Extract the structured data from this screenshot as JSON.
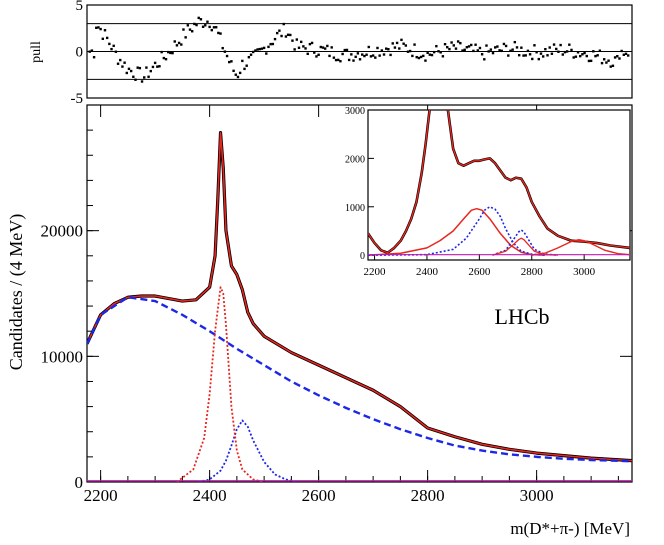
{
  "chart_data": [
    {
      "type": "scatter",
      "name": "pull-panel",
      "ylabel": "pull",
      "xlim": [
        2175,
        3175
      ],
      "ylim": [
        -5,
        5
      ],
      "yticks": [
        "5",
        "0",
        "-5"
      ],
      "reference_lines": [
        3,
        0,
        -3
      ],
      "series": [
        {
          "name": "pull",
          "x": [
            2190,
            2200,
            2210,
            2220,
            2230,
            2240,
            2250,
            2260,
            2270,
            2280,
            2300,
            2320,
            2340,
            2360,
            2380,
            2400,
            2410,
            2420,
            2430,
            2440,
            2450,
            2460,
            2480,
            2500,
            2520,
            2540,
            2560,
            2600,
            2650,
            2700,
            2750,
            2800,
            2850,
            2900,
            2950,
            3000,
            3050,
            3100,
            3150
          ],
          "values": [
            3.1,
            2.4,
            1.5,
            0.6,
            -0.5,
            -1.2,
            -1.9,
            -2.2,
            -2.5,
            -2.7,
            -1.5,
            -0.4,
            0.9,
            2.2,
            3.2,
            3.3,
            2.6,
            1.2,
            -0.2,
            -1.6,
            -2.6,
            -1.4,
            -0.8,
            0.3,
            1.5,
            2.4,
            0.5,
            0.2,
            -0.4,
            0.1,
            0.6,
            -0.3,
            0.4,
            -0.2,
            0.3,
            -0.1,
            0.2,
            -0.3,
            -1.1
          ]
        }
      ]
    },
    {
      "type": "line",
      "name": "main-panel",
      "xlabel": "m(D*+π-) [MeV]",
      "ylabel": "Candidates / (4 MeV)",
      "xlim": [
        2175,
        3175
      ],
      "ylim": [
        0,
        30000
      ],
      "xticks": [
        2200,
        2400,
        2600,
        2800,
        3000
      ],
      "yticks": [
        0,
        10000,
        20000
      ],
      "xtick_labels": [
        "2200",
        "2400",
        "2600",
        "2800",
        "3000"
      ],
      "ytick_labels": [
        "0",
        "10000",
        "20000"
      ],
      "series": [
        {
          "name": "data",
          "color": "#000000",
          "x": [
            2175,
            2200,
            2225,
            2250,
            2275,
            2300,
            2325,
            2350,
            2375,
            2400,
            2410,
            2415,
            2420,
            2425,
            2430,
            2440,
            2450,
            2460,
            2470,
            2480,
            2500,
            2550,
            2600,
            2650,
            2700,
            2750,
            2800,
            2850,
            2900,
            2950,
            3000,
            3050,
            3100,
            3175
          ],
          "values": [
            11000,
            13300,
            14200,
            14700,
            14800,
            14800,
            14600,
            14400,
            14500,
            15500,
            18000,
            22500,
            27800,
            25000,
            20000,
            17200,
            16500,
            15300,
            13500,
            12600,
            11600,
            10300,
            9300,
            8300,
            7300,
            6000,
            4300,
            3600,
            3000,
            2600,
            2300,
            2100,
            1900,
            1700
          ]
        },
        {
          "name": "total-fit",
          "color": "#e8261f",
          "x": [
            2175,
            2200,
            2225,
            2250,
            2275,
            2300,
            2325,
            2350,
            2375,
            2400,
            2410,
            2415,
            2420,
            2425,
            2430,
            2440,
            2450,
            2460,
            2470,
            2480,
            2500,
            2550,
            2600,
            2650,
            2700,
            2750,
            2800,
            2850,
            2900,
            2950,
            3000,
            3050,
            3100,
            3175
          ],
          "values": [
            11000,
            13300,
            14200,
            14700,
            14800,
            14800,
            14600,
            14400,
            14500,
            15500,
            18000,
            22500,
            27800,
            25000,
            20000,
            17200,
            16500,
            15300,
            13500,
            12600,
            11600,
            10300,
            9300,
            8300,
            7300,
            6000,
            4300,
            3600,
            3000,
            2600,
            2300,
            2100,
            1900,
            1700
          ]
        },
        {
          "name": "background",
          "color": "#1d27e8",
          "x": [
            2175,
            2200,
            2250,
            2300,
            2350,
            2400,
            2450,
            2500,
            2550,
            2600,
            2650,
            2700,
            2750,
            2800,
            2850,
            2900,
            2950,
            3000,
            3050,
            3100,
            3175
          ],
          "values": [
            11000,
            13300,
            14700,
            14400,
            13300,
            12000,
            10600,
            9300,
            8000,
            6900,
            5900,
            5000,
            4200,
            3500,
            2900,
            2500,
            2200,
            2000,
            1850,
            1750,
            1650
          ]
        },
        {
          "name": "D2(2460)-like",
          "color": "#1d27e8",
          "x": [
            2380,
            2400,
            2420,
            2430,
            2440,
            2450,
            2460,
            2470,
            2480,
            2500,
            2520,
            2540,
            2560
          ],
          "values": [
            0,
            200,
            900,
            1700,
            2900,
            4200,
            4900,
            4400,
            3300,
            1600,
            600,
            200,
            0
          ]
        },
        {
          "name": "D1(2420)-like",
          "color": "#e8261f",
          "x": [
            2340,
            2370,
            2390,
            2400,
            2410,
            2420,
            2425,
            2430,
            2440,
            2450,
            2460,
            2480,
            2500
          ],
          "values": [
            0,
            1000,
            3500,
            7000,
            12000,
            15500,
            15000,
            12500,
            6000,
            2500,
            1000,
            200,
            0
          ]
        }
      ]
    },
    {
      "type": "line",
      "name": "inset-panel",
      "xlim": [
        2175,
        3175
      ],
      "ylim": [
        -100,
        3000
      ],
      "xticks": [
        2200,
        2400,
        2600,
        2800,
        3000
      ],
      "yticks": [
        0,
        1000,
        2000,
        3000
      ],
      "xtick_labels": [
        "2200",
        "2400",
        "2600",
        "2800",
        "3000"
      ],
      "ytick_labels": [
        "0",
        "1000",
        "2000",
        "3000"
      ],
      "label": "LHCb",
      "series": [
        {
          "name": "data",
          "color": "#000000",
          "x": [
            2175,
            2200,
            2225,
            2250,
            2275,
            2300,
            2320,
            2340,
            2360,
            2380,
            2395,
            2410,
            2420
          ],
          "values": [
            450,
            250,
            100,
            50,
            150,
            300,
            500,
            750,
            1100,
            1700,
            2300,
            3000,
            3100
          ]
        },
        {
          "name": "data-right",
          "color": "#000000",
          "x": [
            2480,
            2500,
            2520,
            2540,
            2560,
            2580,
            2600,
            2620,
            2640,
            2660,
            2680,
            2700,
            2720,
            2740,
            2760,
            2780,
            2800,
            2830,
            2860,
            2900,
            2950,
            3000,
            3050,
            3100,
            3175
          ],
          "values": [
            3000,
            2200,
            1900,
            1850,
            1900,
            1950,
            1950,
            1980,
            2000,
            1900,
            1750,
            1600,
            1550,
            1600,
            1580,
            1400,
            1100,
            800,
            550,
            400,
            300,
            280,
            250,
            200,
            150
          ]
        },
        {
          "name": "fit",
          "color": "#e8261f",
          "x": [
            2175,
            2200,
            2225,
            2250,
            2275,
            2300,
            2320,
            2340,
            2360,
            2380,
            2395,
            2410,
            2420
          ],
          "values": [
            450,
            250,
            100,
            50,
            150,
            300,
            500,
            750,
            1100,
            1700,
            2300,
            3000,
            3100
          ]
        },
        {
          "name": "fit-right",
          "color": "#e8261f",
          "x": [
            2480,
            2500,
            2520,
            2540,
            2560,
            2580,
            2600,
            2620,
            2640,
            2660,
            2680,
            2700,
            2720,
            2740,
            2760,
            2780,
            2800,
            2830,
            2860,
            2900,
            2950,
            3000,
            3050,
            3100,
            3175
          ],
          "values": [
            3000,
            2200,
            1900,
            1850,
            1900,
            1950,
            1950,
            1980,
            2000,
            1900,
            1750,
            1600,
            1550,
            1600,
            1580,
            1400,
            1100,
            800,
            550,
            400,
            300,
            280,
            250,
            200,
            150
          ]
        },
        {
          "name": "D(2550)-like",
          "color": "#e8261f",
          "x": [
            2175,
            2300,
            2400,
            2450,
            2500,
            2540,
            2570,
            2590,
            2610,
            2640,
            2680,
            2720,
            2760,
            2800,
            2850
          ],
          "values": [
            0,
            40,
            150,
            300,
            500,
            750,
            930,
            960,
            930,
            750,
            450,
            200,
            60,
            10,
            0
          ]
        },
        {
          "name": "D(2600)-like",
          "color": "#1d27e8",
          "x": [
            2175,
            2400,
            2500,
            2550,
            2600,
            2620,
            2640,
            2660,
            2680,
            2700,
            2730,
            2760,
            2800,
            2850
          ],
          "values": [
            0,
            10,
            120,
            350,
            750,
            930,
            1000,
            950,
            800,
            550,
            250,
            80,
            20,
            0
          ]
        },
        {
          "name": "D(2750)-like",
          "color": "#1d27e8",
          "x": [
            2650,
            2700,
            2730,
            2750,
            2760,
            2770,
            2790,
            2810,
            2850,
            2900
          ],
          "values": [
            0,
            100,
            320,
            480,
            520,
            480,
            300,
            120,
            20,
            0
          ]
        },
        {
          "name": "D(2750)-red",
          "color": "#e8261f",
          "x": [
            2650,
            2700,
            2730,
            2750,
            2760,
            2770,
            2790,
            2810,
            2850,
            2900
          ],
          "values": [
            0,
            80,
            220,
            320,
            350,
            320,
            200,
            80,
            10,
            0
          ]
        },
        {
          "name": "D(3000)-like",
          "color": "#e8261f",
          "x": [
            2800,
            2850,
            2900,
            2950,
            2980,
            3000,
            3030,
            3080,
            3130,
            3175
          ],
          "values": [
            0,
            40,
            150,
            280,
            320,
            300,
            230,
            100,
            30,
            10
          ]
        },
        {
          "name": "baseline-magenta",
          "color": "#c01ab0",
          "x": [
            2175,
            3175
          ],
          "values": [
            10,
            10
          ]
        }
      ]
    }
  ],
  "title": "",
  "lhcb_label": "LHCb",
  "axis_labels": {
    "pull": "pull",
    "y": "Candidates / (4 MeV)",
    "x": "m(D*+π-) [MeV]"
  }
}
